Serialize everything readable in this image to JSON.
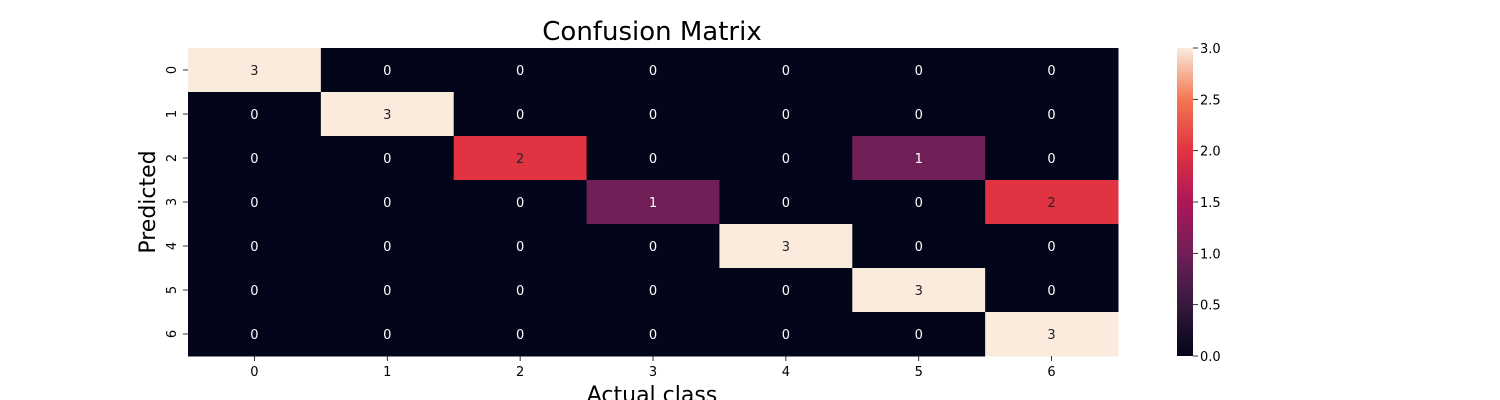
{
  "chart_data": {
    "type": "heatmap",
    "title": "Confusion Matrix",
    "xlabel": "Actual class",
    "ylabel": "Predicted",
    "x_categories": [
      "0",
      "1",
      "2",
      "3",
      "4",
      "5",
      "6"
    ],
    "y_categories": [
      "0",
      "1",
      "2",
      "3",
      "4",
      "5",
      "6"
    ],
    "values": [
      [
        3,
        0,
        0,
        0,
        0,
        0,
        0
      ],
      [
        0,
        3,
        0,
        0,
        0,
        0,
        0
      ],
      [
        0,
        0,
        2,
        0,
        0,
        1,
        0
      ],
      [
        0,
        0,
        0,
        1,
        0,
        0,
        2
      ],
      [
        0,
        0,
        0,
        0,
        3,
        0,
        0
      ],
      [
        0,
        0,
        0,
        0,
        0,
        3,
        0
      ],
      [
        0,
        0,
        0,
        0,
        0,
        0,
        3
      ]
    ],
    "annotated": true,
    "colormap": "rocket",
    "colorbar": {
      "range": [
        0,
        3
      ],
      "ticks": [
        "0.0",
        "0.5",
        "1.0",
        "1.5",
        "2.0",
        "2.5",
        "3.0"
      ]
    },
    "legend": "colorbar-right",
    "grid": false
  }
}
